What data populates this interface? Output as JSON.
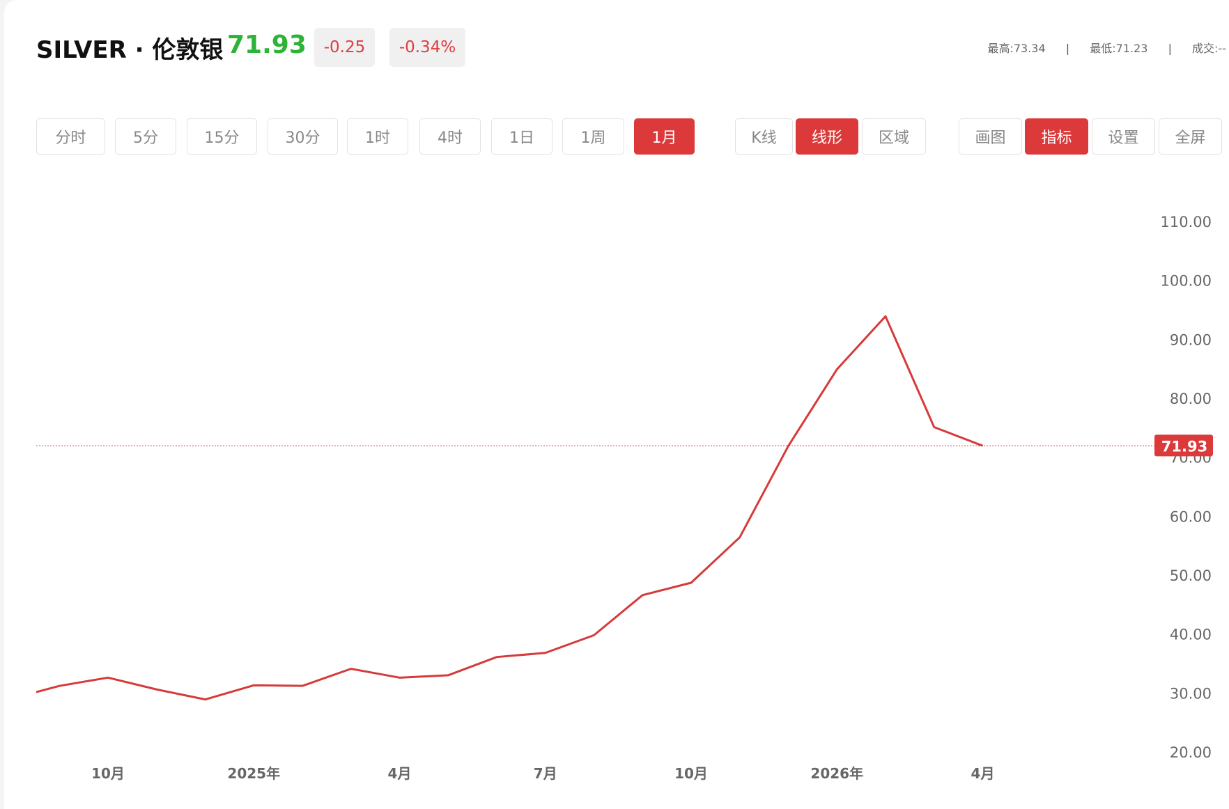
{
  "header": {
    "title": "SILVER · 伦敦银",
    "price": "71.93",
    "change": "-0.25",
    "change_pct": "-0.34%",
    "high_label": "最高:",
    "high": "73.34",
    "low_label": "最低:",
    "low": "71.23",
    "volume_label": "成交:",
    "volume": "--",
    "separator": "|"
  },
  "periods": [
    "分时",
    "5分",
    "15分",
    "30分",
    "1时",
    "4时",
    "1日",
    "1周",
    "1月"
  ],
  "active_period": "1月",
  "chart_types": [
    "K线",
    "线形",
    "区域"
  ],
  "active_chart_type": "线形",
  "tools": [
    "画图",
    "指标",
    "设置",
    "全屏"
  ],
  "active_tool": "指标",
  "colors": {
    "line": "#d63a3a",
    "up": "#2db336",
    "down": "#e03c3c",
    "accent": "#dc3a3a"
  },
  "chart_data": {
    "type": "line",
    "x": [
      "2024-08",
      "2024-09",
      "2024-10",
      "2024-11",
      "2024-12",
      "2025-01",
      "2025-02",
      "2025-03",
      "2025-04",
      "2025-05",
      "2025-06",
      "2025-07",
      "2025-08",
      "2025-09",
      "2025-10",
      "2025-11",
      "2025-12",
      "2026-01",
      "2026-02",
      "2026-03",
      "2026-04"
    ],
    "values": [
      29.0,
      31.2,
      32.6,
      30.6,
      28.9,
      31.3,
      31.2,
      34.1,
      32.6,
      33.0,
      36.1,
      36.8,
      39.8,
      46.6,
      48.7,
      56.4,
      71.9,
      84.9,
      93.9,
      75.1,
      71.93
    ],
    "current_price": 71.93,
    "current_price_label": "71.93",
    "ylim": [
      20,
      110
    ],
    "y_ticks": [
      "110.00",
      "100.00",
      "90.00",
      "80.00",
      "70.00",
      "60.00",
      "50.00",
      "40.00",
      "30.00",
      "20.00"
    ],
    "x_ticks": [
      {
        "label": "10月",
        "at": "2024-10"
      },
      {
        "label": "2025年",
        "at": "2025-01"
      },
      {
        "label": "4月",
        "at": "2025-04"
      },
      {
        "label": "7月",
        "at": "2025-07"
      },
      {
        "label": "10月",
        "at": "2025-10"
      },
      {
        "label": "2026年",
        "at": "2026-01"
      },
      {
        "label": "4月",
        "at": "2026-04"
      }
    ],
    "grid": false,
    "y_axis_position": "right"
  }
}
